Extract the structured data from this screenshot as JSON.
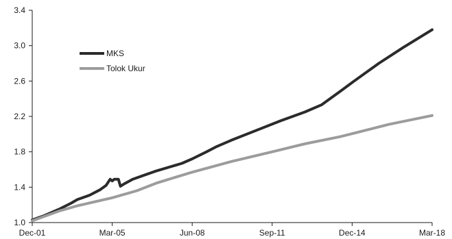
{
  "chart_data": {
    "type": "line",
    "title": "",
    "xlabel": "",
    "ylabel": "",
    "x_ticks": [
      "Dec-01",
      "Mar-05",
      "Jun-08",
      "Sep-11",
      "Dec-14",
      "Mar-18"
    ],
    "x_range": [
      "2001-12",
      "2018-03"
    ],
    "ylim": [
      1.0,
      3.4
    ],
    "y_ticks": [
      "1.0",
      "1.4",
      "1.8",
      "2.2",
      "2.6",
      "3.0",
      "3.4"
    ],
    "grid": false,
    "legend": {
      "placement": "top-left"
    },
    "series": [
      {
        "name": "MKS",
        "color": "#2b2b2b",
        "points": [
          [
            "2001-12",
            1.03
          ],
          [
            "2002-06",
            1.08
          ],
          [
            "2003-01",
            1.15
          ],
          [
            "2003-07",
            1.22
          ],
          [
            "2003-10",
            1.26
          ],
          [
            "2004-04",
            1.31
          ],
          [
            "2004-09",
            1.37
          ],
          [
            "2004-12",
            1.42
          ],
          [
            "2005-02",
            1.49
          ],
          [
            "2005-03",
            1.47
          ],
          [
            "2005-04",
            1.49
          ],
          [
            "2005-06",
            1.49
          ],
          [
            "2005-07",
            1.41
          ],
          [
            "2005-09",
            1.44
          ],
          [
            "2006-01",
            1.49
          ],
          [
            "2006-12",
            1.58
          ],
          [
            "2008-01",
            1.67
          ],
          [
            "2008-06",
            1.72
          ],
          [
            "2009-01",
            1.8
          ],
          [
            "2009-06",
            1.86
          ],
          [
            "2010-01",
            1.93
          ],
          [
            "2011-01",
            2.04
          ],
          [
            "2012-01",
            2.15
          ],
          [
            "2013-01",
            2.25
          ],
          [
            "2013-09",
            2.33
          ],
          [
            "2014-06",
            2.48
          ],
          [
            "2015-01",
            2.6
          ],
          [
            "2016-01",
            2.8
          ],
          [
            "2017-01",
            2.98
          ],
          [
            "2018-03",
            3.18
          ]
        ]
      },
      {
        "name": "Tolok Ukur",
        "color": "#9c9c9c",
        "points": [
          [
            "2001-12",
            1.02
          ],
          [
            "2003-01",
            1.13
          ],
          [
            "2003-10",
            1.19
          ],
          [
            "2005-03",
            1.28
          ],
          [
            "2006-03",
            1.36
          ],
          [
            "2007-01",
            1.45
          ],
          [
            "2008-06",
            1.57
          ],
          [
            "2010-01",
            1.69
          ],
          [
            "2011-09",
            1.8
          ],
          [
            "2013-01",
            1.89
          ],
          [
            "2014-06",
            1.97
          ],
          [
            "2015-06",
            2.04
          ],
          [
            "2016-06",
            2.11
          ],
          [
            "2018-03",
            2.21
          ]
        ]
      }
    ]
  }
}
